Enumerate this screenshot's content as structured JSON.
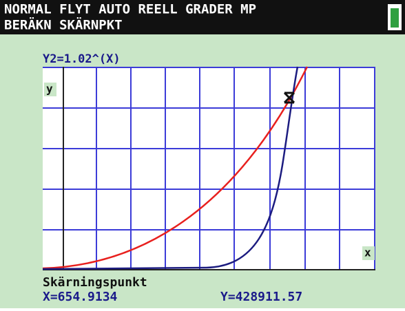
{
  "status_bar": {
    "line1": "NORMAL FLYT AUTO REELL GRADER MP",
    "line2": "BERÄKN SKÄRNPKT"
  },
  "graph": {
    "function": "Y2=1.02^(X)",
    "y_axis_label": "y",
    "x_axis_label": "x"
  },
  "result": {
    "title": "Skärningspunkt",
    "x": "X=654.9134",
    "y": "Y=428911.57"
  }
}
